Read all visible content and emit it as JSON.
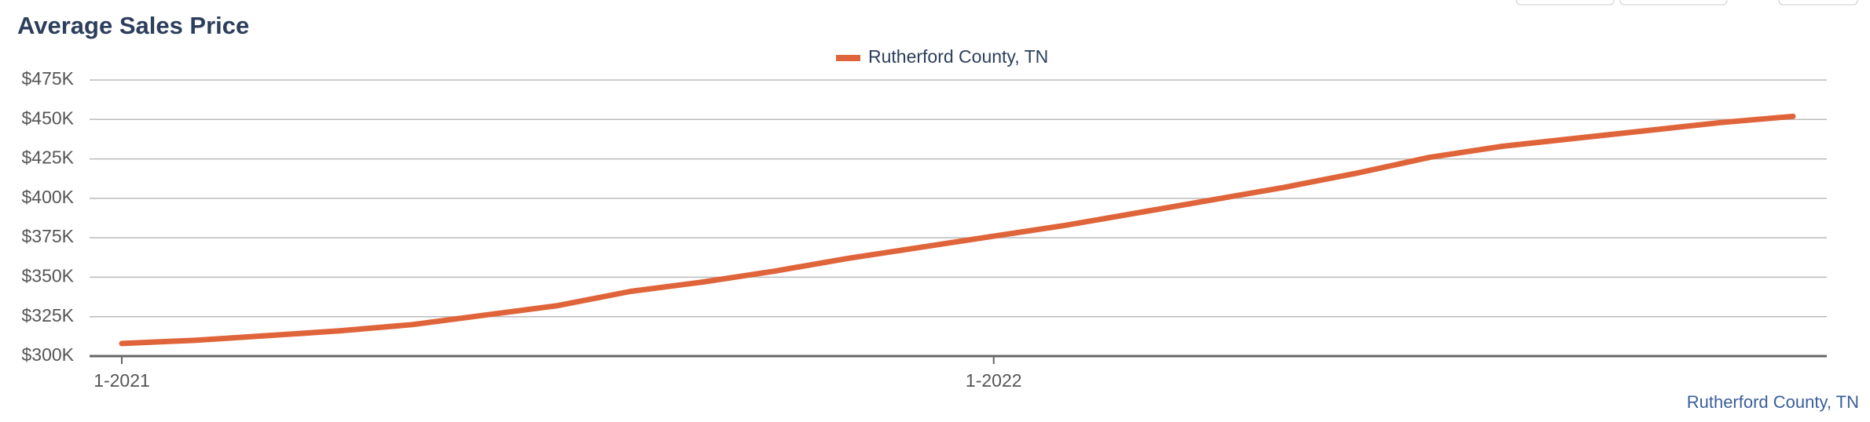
{
  "chart_data": {
    "type": "line",
    "title": "Average Sales Price",
    "categories": [
      "1-2021",
      null,
      null,
      null,
      null,
      null,
      null,
      null,
      null,
      null,
      null,
      null,
      "1-2022",
      null,
      null,
      null,
      null,
      null,
      null,
      null,
      null,
      null,
      null,
      null
    ],
    "series": [
      {
        "name": "Rutherford County, TN",
        "color": "#e0643a",
        "values": [
          308000,
          310000,
          313000,
          316000,
          320000,
          326000,
          332000,
          341000,
          347000,
          354000,
          362000,
          369000,
          376000,
          383000,
          391000,
          399000,
          407000,
          416000,
          426000,
          433000,
          438000,
          443000,
          448000,
          452000
        ]
      }
    ],
    "ylim": [
      300000,
      475000
    ],
    "yticks": [
      {
        "value": 300000,
        "label": "$300K"
      },
      {
        "value": 325000,
        "label": "$325K"
      },
      {
        "value": 350000,
        "label": "$350K"
      },
      {
        "value": 375000,
        "label": "$375K"
      },
      {
        "value": 400000,
        "label": "$400K"
      },
      {
        "value": 425000,
        "label": "$425K"
      },
      {
        "value": 450000,
        "label": "$450K"
      },
      {
        "value": 475000,
        "label": "$475K"
      }
    ],
    "grid": true,
    "footer": "Rutherford County, TN"
  }
}
